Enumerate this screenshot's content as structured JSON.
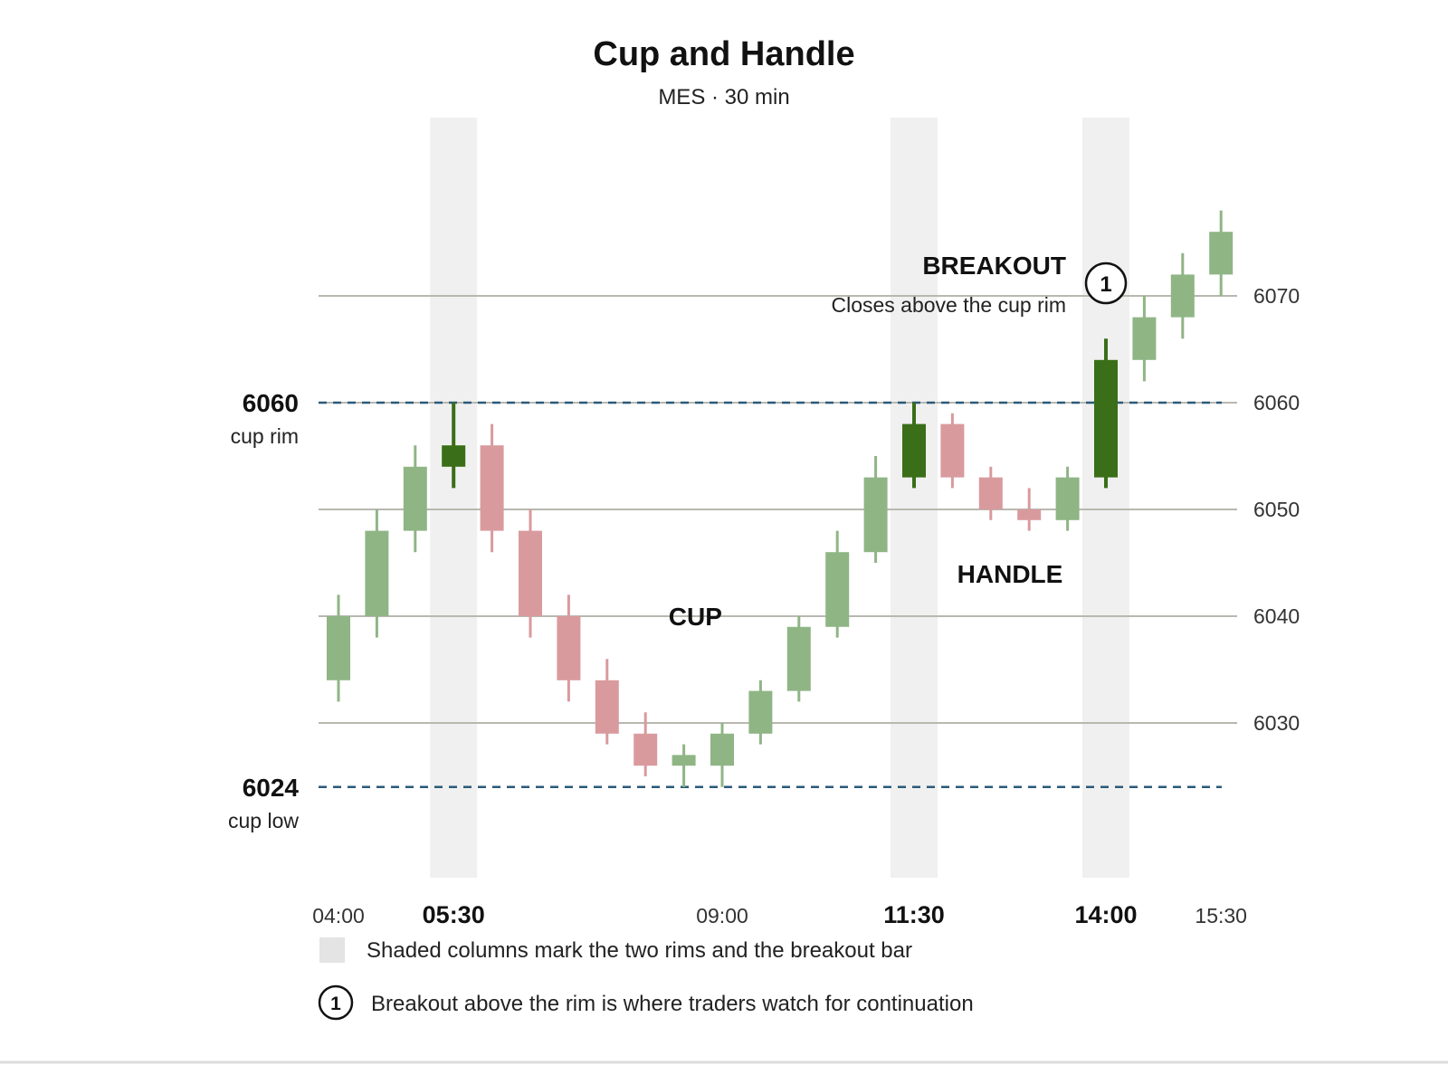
{
  "chart_data": {
    "type": "candlestick",
    "title": "Cup and Handle",
    "subtitle": "MES · 30 min",
    "ylim": [
      6004,
      6082
    ],
    "y_ticks": [
      6030,
      6040,
      6050,
      6060,
      6070
    ],
    "y_tick_labels": [
      "6030",
      "6040",
      "6050",
      "6060",
      "6070"
    ],
    "grid": true,
    "x_tick_labels": [
      {
        "index": 0,
        "label": "04:00",
        "bold": false
      },
      {
        "index": 3,
        "label": "05:30",
        "bold": true
      },
      {
        "index": 10,
        "label": "09:00",
        "bold": false
      },
      {
        "index": 15,
        "label": "11:30",
        "bold": true
      },
      {
        "index": 20,
        "label": "14:00",
        "bold": true
      },
      {
        "index": 23,
        "label": "15:30",
        "bold": false
      }
    ],
    "candles": [
      {
        "time": "04:00",
        "open": 6034,
        "high": 6042,
        "low": 6032,
        "close": 6040
      },
      {
        "time": "04:30",
        "open": 6040,
        "high": 6050,
        "low": 6038,
        "close": 6048
      },
      {
        "time": "05:00",
        "open": 6048,
        "high": 6056,
        "low": 6046,
        "close": 6054
      },
      {
        "time": "05:30",
        "open": 6054,
        "high": 6060,
        "low": 6052,
        "close": 6056
      },
      {
        "time": "06:00",
        "open": 6056,
        "high": 6058,
        "low": 6046,
        "close": 6048
      },
      {
        "time": "06:30",
        "open": 6048,
        "high": 6050,
        "low": 6038,
        "close": 6040
      },
      {
        "time": "07:00",
        "open": 6040,
        "high": 6042,
        "low": 6032,
        "close": 6034
      },
      {
        "time": "07:30",
        "open": 6034,
        "high": 6036,
        "low": 6028,
        "close": 6029
      },
      {
        "time": "08:00",
        "open": 6029,
        "high": 6031,
        "low": 6025,
        "close": 6026
      },
      {
        "time": "08:30",
        "open": 6026,
        "high": 6028,
        "low": 6024,
        "close": 6027
      },
      {
        "time": "09:00",
        "open": 6026,
        "high": 6030,
        "low": 6024,
        "close": 6029
      },
      {
        "time": "09:30",
        "open": 6029,
        "high": 6034,
        "low": 6028,
        "close": 6033
      },
      {
        "time": "10:00",
        "open": 6033,
        "high": 6040,
        "low": 6032,
        "close": 6039
      },
      {
        "time": "10:30",
        "open": 6039,
        "high": 6048,
        "low": 6038,
        "close": 6046
      },
      {
        "time": "11:00",
        "open": 6046,
        "high": 6055,
        "low": 6045,
        "close": 6053
      },
      {
        "time": "11:30",
        "open": 6053,
        "high": 6060,
        "low": 6052,
        "close": 6058
      },
      {
        "time": "12:00",
        "open": 6058,
        "high": 6059,
        "low": 6052,
        "close": 6053
      },
      {
        "time": "12:30",
        "open": 6053,
        "high": 6054,
        "low": 6049,
        "close": 6050
      },
      {
        "time": "13:00",
        "open": 6050,
        "high": 6052,
        "low": 6048,
        "close": 6049
      },
      {
        "time": "13:30",
        "open": 6049,
        "high": 6054,
        "low": 6048,
        "close": 6053
      },
      {
        "time": "14:00",
        "open": 6053,
        "high": 6066,
        "low": 6052,
        "close": 6064
      },
      {
        "time": "14:30",
        "open": 6064,
        "high": 6070,
        "low": 6062,
        "close": 6068
      },
      {
        "time": "15:00",
        "open": 6068,
        "high": 6074,
        "low": 6066,
        "close": 6072
      },
      {
        "time": "15:30",
        "open": 6072,
        "high": 6078,
        "low": 6070,
        "close": 6076
      }
    ],
    "highlight_indices": [
      3,
      15,
      20
    ],
    "reference_lines": [
      {
        "value": 6060,
        "value_label": "6060",
        "label": "cup rim",
        "style": "dashed"
      },
      {
        "value": 6024,
        "value_label": "6024",
        "label": "cup low",
        "style": "dashed"
      }
    ],
    "annotations": {
      "cup": {
        "text": "CUP",
        "index": 9.3,
        "value": 6040
      },
      "handle": {
        "text": "HANDLE",
        "index": 17.5,
        "value": 6044
      },
      "breakout": {
        "title": "BREAKOUT",
        "text": "Closes above the cup rim",
        "badge": "1",
        "index": 20,
        "value": 6071
      }
    },
    "legend": {
      "shaded_text": "Shaded columns mark the two rims and the breakout bar",
      "badge": "1",
      "badge_text": "Breakout above the rim is where traders watch for continuation"
    },
    "colors": {
      "up": "#8fb585",
      "down": "#d99a9e",
      "highlight_up": "#3a6e18",
      "reference": "#2a5a78",
      "grid": "#b8b8b0",
      "shade": "#f0f0f0"
    }
  }
}
